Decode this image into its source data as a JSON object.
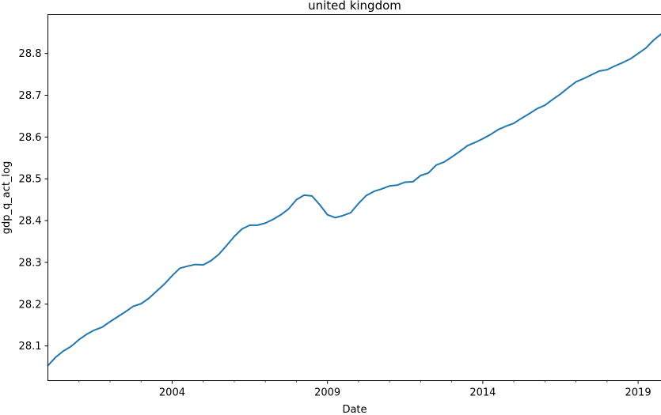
{
  "chart_data": {
    "type": "line",
    "title": "united kingdom",
    "xlabel": "Date",
    "ylabel": "gdp_q_act_log",
    "x_major_ticks": [
      2004,
      2009,
      2014,
      2019
    ],
    "x_major_tick_labels": [
      "2004",
      "2009",
      "2014",
      "2019"
    ],
    "x_minor_ticks": [
      2001,
      2002,
      2003,
      2005,
      2006,
      2007,
      2008,
      2010,
      2011,
      2012,
      2013,
      2015,
      2016,
      2017,
      2018
    ],
    "y_ticks": [
      28.1,
      28.2,
      28.3,
      28.4,
      28.5,
      28.6,
      28.7,
      28.8
    ],
    "y_tick_labels": [
      "28.1",
      "28.2",
      "28.3",
      "28.4",
      "28.5",
      "28.6",
      "28.7",
      "28.8"
    ],
    "xlim": [
      2000.0,
      2019.75
    ],
    "ylim": [
      28.017,
      28.893
    ],
    "grid": false,
    "line_color": "#1f77b4",
    "series": [
      {
        "x": [
          2000.0,
          2000.25,
          2000.5,
          2000.75,
          2001.0,
          2001.25,
          2001.5,
          2001.75,
          2002.0,
          2002.25,
          2002.5,
          2002.75,
          2003.0,
          2003.25,
          2003.5,
          2003.75,
          2004.0,
          2004.25,
          2004.5,
          2004.75,
          2005.0,
          2005.25,
          2005.5,
          2005.75,
          2006.0,
          2006.25,
          2006.5,
          2006.75,
          2007.0,
          2007.25,
          2007.5,
          2007.75,
          2008.0,
          2008.25,
          2008.5,
          2008.75,
          2009.0,
          2009.25,
          2009.5,
          2009.75,
          2010.0,
          2010.25,
          2010.5,
          2010.75,
          2011.0,
          2011.25,
          2011.5,
          2011.75,
          2012.0,
          2012.25,
          2012.5,
          2012.75,
          2013.0,
          2013.25,
          2013.5,
          2013.75,
          2014.0,
          2014.25,
          2014.5,
          2014.75,
          2015.0,
          2015.25,
          2015.5,
          2015.75,
          2016.0,
          2016.25,
          2016.5,
          2016.75,
          2017.0,
          2017.25,
          2017.5,
          2017.75,
          2018.0,
          2018.25,
          2018.5,
          2018.75,
          2019.0,
          2019.25,
          2019.5,
          2019.75
        ],
        "values": [
          28.053,
          28.073,
          28.088,
          28.099,
          28.115,
          28.128,
          28.138,
          28.145,
          28.158,
          28.17,
          28.182,
          28.195,
          28.201,
          28.214,
          28.231,
          28.248,
          28.268,
          28.286,
          28.291,
          28.295,
          28.294,
          28.304,
          28.319,
          28.34,
          28.362,
          28.38,
          28.389,
          28.389,
          28.394,
          28.403,
          28.414,
          28.428,
          28.45,
          28.461,
          28.459,
          28.438,
          28.414,
          28.407,
          28.412,
          28.419,
          28.441,
          28.46,
          28.47,
          28.476,
          28.483,
          28.485,
          28.492,
          28.493,
          28.508,
          28.514,
          28.533,
          28.54,
          28.552,
          28.565,
          28.579,
          28.587,
          28.596,
          28.606,
          28.618,
          28.626,
          28.633,
          28.645,
          28.656,
          28.668,
          28.676,
          28.69,
          28.703,
          28.718,
          28.732,
          28.74,
          28.749,
          28.758,
          28.761,
          28.77,
          28.778,
          28.787,
          28.8,
          28.813,
          28.832,
          28.847
        ]
      }
    ]
  }
}
